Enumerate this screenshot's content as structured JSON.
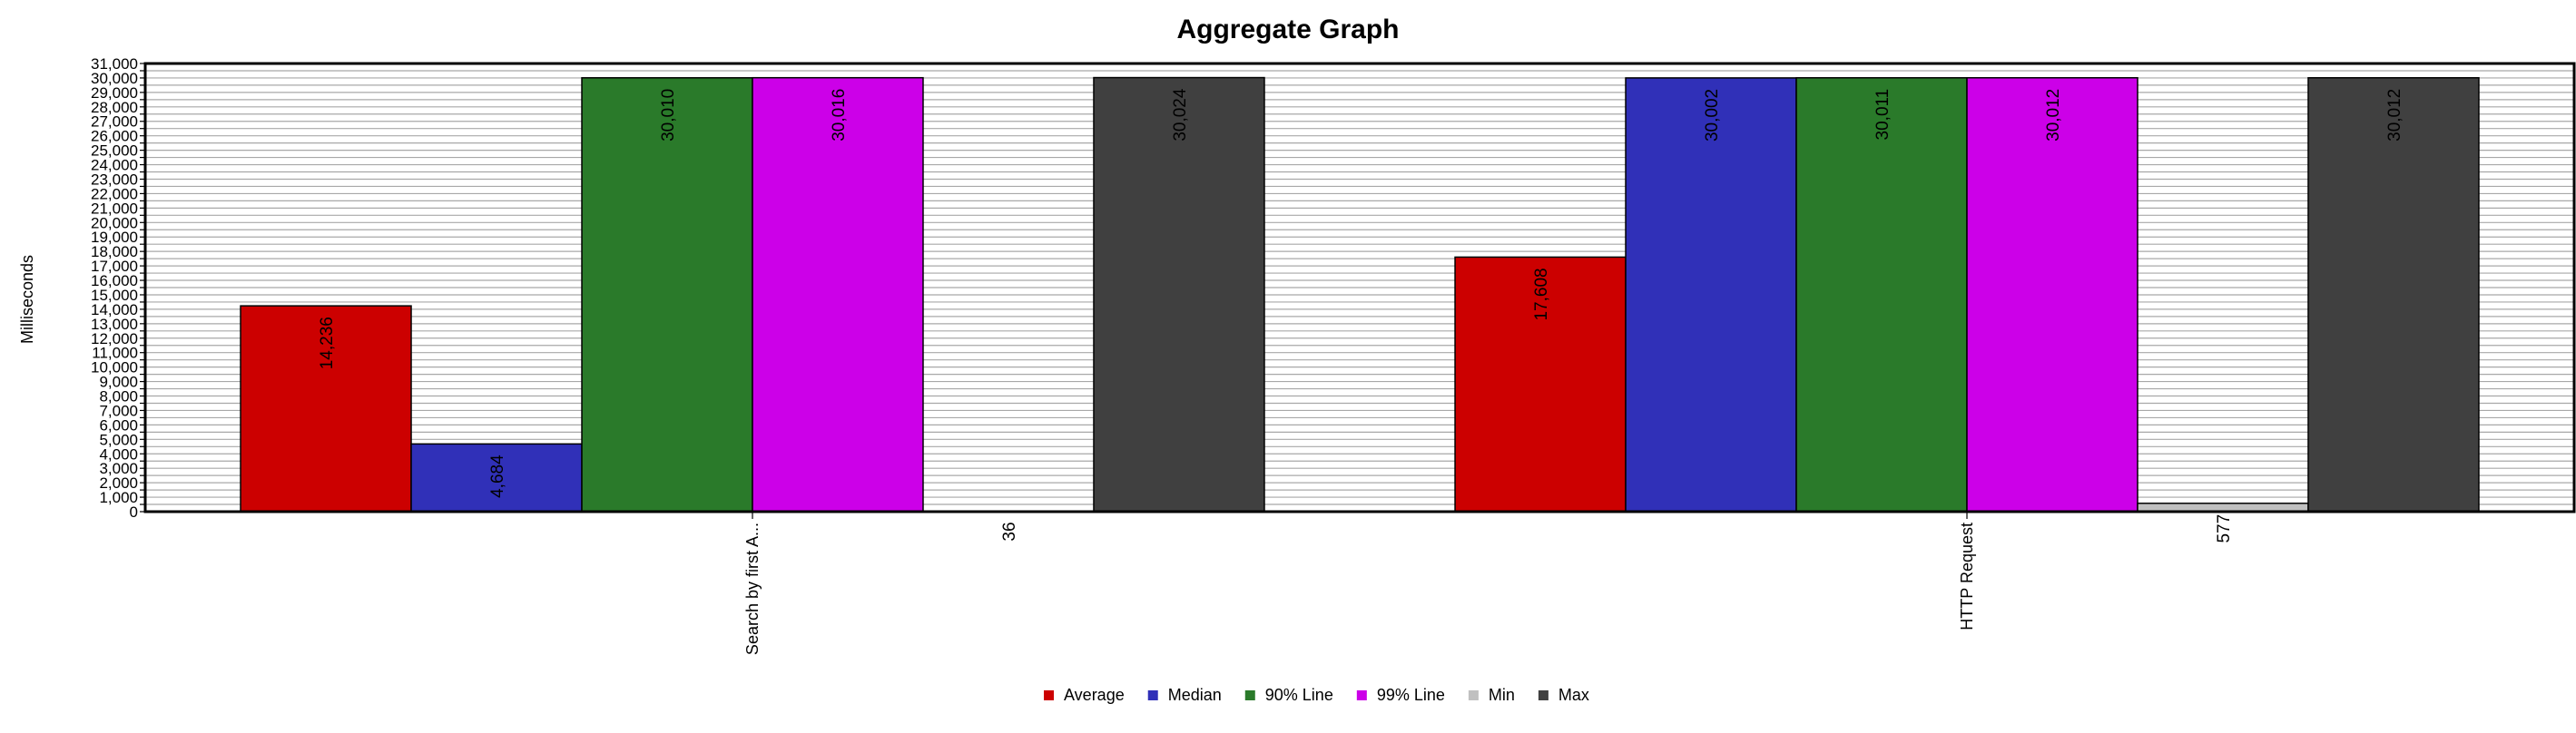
{
  "chart_data": {
    "type": "bar",
    "title": "Aggregate Graph",
    "ylabel": "Milliseconds",
    "xlabel": "",
    "ylim": [
      0,
      31000
    ],
    "ytick_step": 500,
    "ytick_label_step": 1000,
    "grid": true,
    "legend": "bottom",
    "categories": [
      "Search by first A...",
      "HTTP Request"
    ],
    "series": [
      {
        "name": "Average",
        "color": "#cc0000",
        "values": [
          14236,
          17608
        ],
        "labels": [
          "14,236",
          "17,608"
        ]
      },
      {
        "name": "Median",
        "color": "#3030b8",
        "values": [
          4684,
          30002
        ],
        "labels": [
          "4,684",
          "30,002"
        ]
      },
      {
        "name": "90% Line",
        "color": "#2a7a2a",
        "values": [
          30010,
          30011
        ],
        "labels": [
          "30,010",
          "30,011"
        ]
      },
      {
        "name": "99% Line",
        "color": "#cc00e8",
        "values": [
          30016,
          30012
        ],
        "labels": [
          "30,016",
          "30,012"
        ]
      },
      {
        "name": "Min",
        "color": "#c0c0c0",
        "values": [
          36,
          577
        ],
        "labels": [
          "36",
          "577"
        ]
      },
      {
        "name": "Max",
        "color": "#404040",
        "values": [
          30024,
          30012
        ],
        "labels": [
          "30,024",
          "30,012"
        ]
      }
    ]
  }
}
